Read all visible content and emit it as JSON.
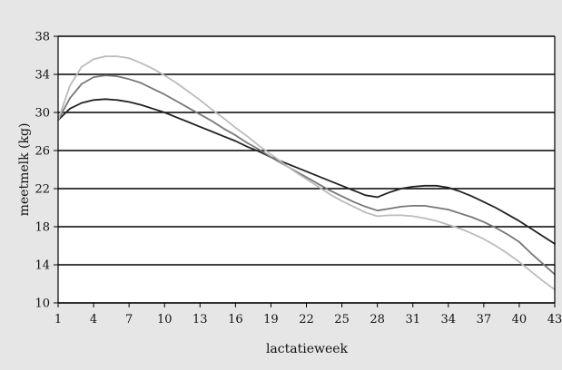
{
  "chart_data": {
    "type": "line",
    "title": "",
    "xlabel": "lactatieweek",
    "ylabel": "meetmelk (kg)",
    "xlim": [
      1,
      43
    ],
    "ylim": [
      10,
      38
    ],
    "x_ticks": [
      1,
      4,
      7,
      10,
      13,
      16,
      19,
      22,
      25,
      28,
      31,
      34,
      37,
      40,
      43
    ],
    "y_ticks": [
      10,
      14,
      18,
      22,
      26,
      30,
      34,
      38
    ],
    "grid": "horizontal",
    "legend": "none",
    "series": [
      {
        "color": "#222222",
        "points": [
          [
            1,
            29.2
          ],
          [
            2,
            30.4
          ],
          [
            3,
            31.0
          ],
          [
            4,
            31.3
          ],
          [
            5,
            31.4
          ],
          [
            6,
            31.3
          ],
          [
            7,
            31.1
          ],
          [
            8,
            30.8
          ],
          [
            9,
            30.4
          ],
          [
            10,
            30.0
          ],
          [
            11,
            29.5
          ],
          [
            12,
            29.0
          ],
          [
            13,
            28.5
          ],
          [
            14,
            28.0
          ],
          [
            15,
            27.5
          ],
          [
            16,
            27.0
          ],
          [
            17,
            26.4
          ],
          [
            18,
            25.9
          ],
          [
            19,
            25.3
          ],
          [
            20,
            24.8
          ],
          [
            21,
            24.3
          ],
          [
            22,
            23.8
          ],
          [
            23,
            23.3
          ],
          [
            24,
            22.8
          ],
          [
            25,
            22.3
          ],
          [
            26,
            21.8
          ],
          [
            27,
            21.3
          ],
          [
            28,
            21.1
          ],
          [
            29,
            21.6
          ],
          [
            30,
            22.0
          ],
          [
            31,
            22.2
          ],
          [
            32,
            22.3
          ],
          [
            33,
            22.3
          ],
          [
            34,
            22.1
          ],
          [
            35,
            21.7
          ],
          [
            36,
            21.2
          ],
          [
            37,
            20.6
          ],
          [
            38,
            20.0
          ],
          [
            39,
            19.3
          ],
          [
            40,
            18.6
          ],
          [
            41,
            17.8
          ],
          [
            42,
            17.0
          ],
          [
            43,
            16.2
          ]
        ]
      },
      {
        "color": "#777777",
        "points": [
          [
            1,
            29.2
          ],
          [
            2,
            31.5
          ],
          [
            3,
            33.0
          ],
          [
            4,
            33.7
          ],
          [
            5,
            33.9
          ],
          [
            6,
            33.8
          ],
          [
            7,
            33.5
          ],
          [
            8,
            33.1
          ],
          [
            9,
            32.5
          ],
          [
            10,
            31.9
          ],
          [
            11,
            31.2
          ],
          [
            12,
            30.5
          ],
          [
            13,
            29.8
          ],
          [
            14,
            29.1
          ],
          [
            15,
            28.3
          ],
          [
            16,
            27.6
          ],
          [
            17,
            26.8
          ],
          [
            18,
            26.1
          ],
          [
            19,
            25.3
          ],
          [
            20,
            24.6
          ],
          [
            21,
            23.9
          ],
          [
            22,
            23.2
          ],
          [
            23,
            22.5
          ],
          [
            24,
            21.8
          ],
          [
            25,
            21.2
          ],
          [
            26,
            20.6
          ],
          [
            27,
            20.1
          ],
          [
            28,
            19.7
          ],
          [
            29,
            19.9
          ],
          [
            30,
            20.1
          ],
          [
            31,
            20.2
          ],
          [
            32,
            20.2
          ],
          [
            33,
            20.0
          ],
          [
            34,
            19.8
          ],
          [
            35,
            19.4
          ],
          [
            36,
            19.0
          ],
          [
            37,
            18.5
          ],
          [
            38,
            17.9
          ],
          [
            39,
            17.2
          ],
          [
            40,
            16.4
          ],
          [
            41,
            15.2
          ],
          [
            42,
            14.1
          ],
          [
            43,
            13.0
          ]
        ]
      },
      {
        "color": "#bbbbbb",
        "points": [
          [
            1,
            29.2
          ],
          [
            2,
            32.8
          ],
          [
            3,
            34.8
          ],
          [
            4,
            35.6
          ],
          [
            5,
            35.9
          ],
          [
            6,
            35.9
          ],
          [
            7,
            35.7
          ],
          [
            8,
            35.2
          ],
          [
            9,
            34.6
          ],
          [
            10,
            33.9
          ],
          [
            11,
            33.1
          ],
          [
            12,
            32.2
          ],
          [
            13,
            31.3
          ],
          [
            14,
            30.3
          ],
          [
            15,
            29.4
          ],
          [
            16,
            28.4
          ],
          [
            17,
            27.5
          ],
          [
            18,
            26.5
          ],
          [
            19,
            25.6
          ],
          [
            20,
            24.7
          ],
          [
            21,
            23.8
          ],
          [
            22,
            23.0
          ],
          [
            23,
            22.2
          ],
          [
            24,
            21.4
          ],
          [
            25,
            20.7
          ],
          [
            26,
            20.1
          ],
          [
            27,
            19.5
          ],
          [
            28,
            19.1
          ],
          [
            29,
            19.2
          ],
          [
            30,
            19.2
          ],
          [
            31,
            19.1
          ],
          [
            32,
            18.9
          ],
          [
            33,
            18.6
          ],
          [
            34,
            18.2
          ],
          [
            35,
            17.8
          ],
          [
            36,
            17.3
          ],
          [
            37,
            16.7
          ],
          [
            38,
            16.0
          ],
          [
            39,
            15.2
          ],
          [
            40,
            14.3
          ],
          [
            41,
            13.3
          ],
          [
            42,
            12.3
          ],
          [
            43,
            11.4
          ]
        ]
      }
    ]
  }
}
